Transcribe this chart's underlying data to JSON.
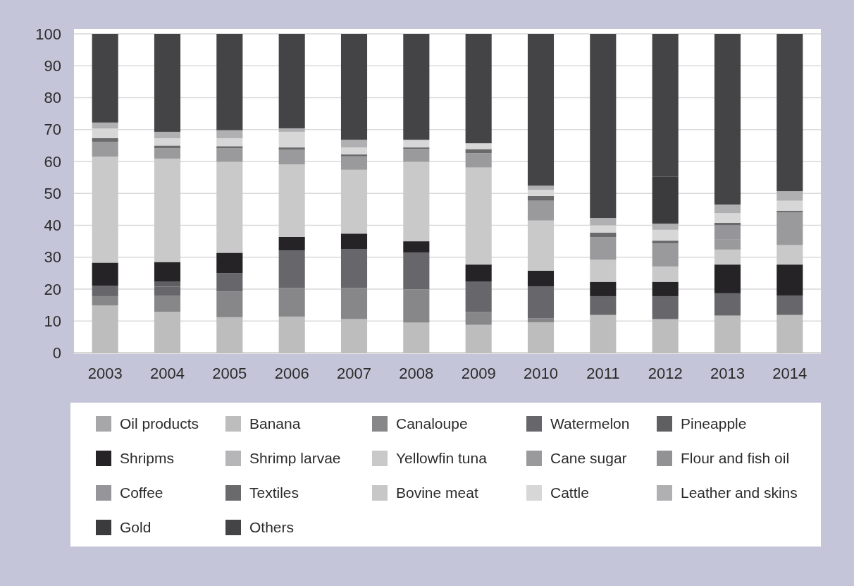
{
  "chart_data": {
    "type": "bar",
    "stacked": true,
    "categories": [
      "2003",
      "2004",
      "2005",
      "2006",
      "2007",
      "2008",
      "2009",
      "2010",
      "2011",
      "2012",
      "2013",
      "2014"
    ],
    "series": [
      {
        "name": "Oil products",
        "color": "#a7a7a9",
        "values": [
          null,
          null,
          null,
          null,
          null,
          null,
          null,
          null,
          null,
          null,
          null,
          null
        ]
      },
      {
        "name": "Banana",
        "color": "#bdbdbd",
        "values": [
          14.9,
          12.9,
          11.2,
          11.4,
          10.6,
          9.5,
          8.8,
          9.6,
          11.9,
          10.6,
          11.7,
          11.9
        ]
      },
      {
        "name": "Canaloupe",
        "color": "#87878a",
        "values": [
          2.9,
          5.1,
          8.1,
          9.0,
          9.8,
          10.4,
          4.1,
          1.3,
          null,
          null,
          null,
          null
        ]
      },
      {
        "name": "Watermelon",
        "color": "#67676b",
        "values": [
          3.2,
          2.8,
          5.7,
          11.7,
          12.2,
          11.5,
          9.4,
          9.9,
          5.9,
          7.2,
          7.0,
          6.1
        ]
      },
      {
        "name": "Pineapple",
        "color": "#5f5f62",
        "values": [
          null,
          1.5,
          null,
          null,
          null,
          null,
          null,
          null,
          null,
          null,
          null,
          null
        ]
      },
      {
        "name": "Shripms",
        "color": "#252325",
        "values": [
          7.3,
          6.2,
          6.4,
          4.3,
          4.8,
          3.6,
          5.4,
          5.0,
          4.5,
          4.5,
          9.0,
          9.7
        ]
      },
      {
        "name": "Shrimp larvae",
        "color": "#b6b6b8",
        "values": [
          null,
          null,
          null,
          null,
          null,
          null,
          null,
          null,
          null,
          null,
          null,
          null
        ]
      },
      {
        "name": "Yellowfin tuna",
        "color": "#c9c9ca",
        "values": [
          33.2,
          32.4,
          28.5,
          22.7,
          20.0,
          24.9,
          30.4,
          15.7,
          6.9,
          4.8,
          4.7,
          6.1
        ]
      },
      {
        "name": "Cane sugar",
        "color": "#9a9a9d",
        "values": [
          4.7,
          3.2,
          4.2,
          4.6,
          4.2,
          4.0,
          4.5,
          6.2,
          7.1,
          7.2,
          3.1,
          10.3
        ]
      },
      {
        "name": "Flour and fish oil",
        "color": "#929295",
        "values": [
          null,
          null,
          null,
          null,
          null,
          null,
          null,
          null,
          null,
          null,
          null,
          null
        ]
      },
      {
        "name": "Coffee",
        "color": "#96969a",
        "values": [
          null,
          null,
          null,
          null,
          null,
          null,
          null,
          null,
          null,
          null,
          4.5,
          null
        ]
      },
      {
        "name": "Textiles",
        "color": "#6a6a6d",
        "values": [
          1.1,
          0.9,
          0.7,
          0.7,
          0.6,
          0.5,
          1.3,
          1.5,
          1.4,
          0.9,
          0.8,
          0.5
        ]
      },
      {
        "name": "Bovine meat",
        "color": "#c7c7c8",
        "values": [
          null,
          null,
          null,
          null,
          null,
          null,
          null,
          null,
          null,
          null,
          null,
          null
        ]
      },
      {
        "name": "Cattle",
        "color": "#d7d7d8",
        "values": [
          3.0,
          2.3,
          2.5,
          4.9,
          2.2,
          2.4,
          1.8,
          1.9,
          2.3,
          3.4,
          3.0,
          3.1
        ]
      },
      {
        "name": "Leather and skins",
        "color": "#b0b0b2",
        "values": [
          1.9,
          2.0,
          2.5,
          1.1,
          2.4,
          null,
          null,
          1.3,
          2.3,
          1.9,
          2.7,
          3.0
        ]
      },
      {
        "name": "Gold",
        "color": "#3b3b3d",
        "values": [
          null,
          null,
          null,
          null,
          null,
          null,
          null,
          null,
          null,
          14.8,
          null,
          null
        ]
      },
      {
        "name": "Others",
        "color": "#444446",
        "values": [
          27.8,
          30.7,
          30.2,
          29.6,
          33.2,
          33.2,
          34.3,
          47.6,
          57.7,
          44.7,
          53.5,
          49.3
        ]
      }
    ],
    "ylim": [
      0,
      100
    ],
    "yticks": [
      0,
      10,
      20,
      30,
      40,
      50,
      60,
      70,
      80,
      90,
      100
    ],
    "grid": "y",
    "legend": "bottom"
  }
}
